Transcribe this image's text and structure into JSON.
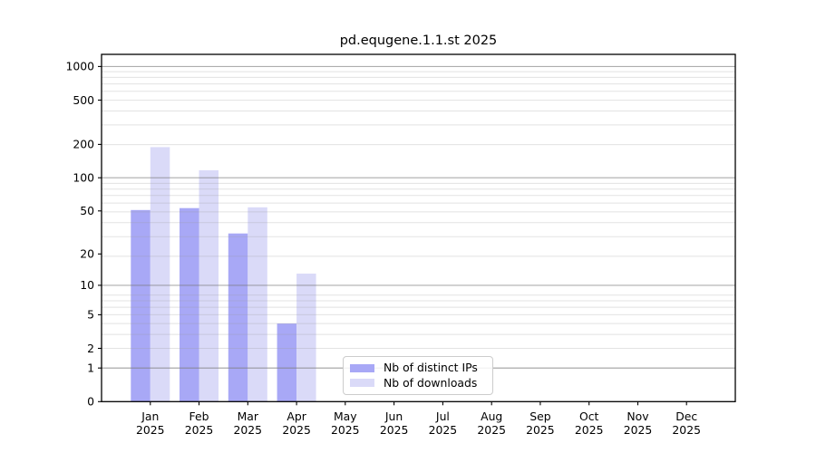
{
  "chart_data": {
    "type": "bar",
    "title": "pd.equgene.1.1.st 2025",
    "categories": [
      "Jan 2025",
      "Feb 2025",
      "Mar 2025",
      "Apr 2025",
      "May 2025",
      "Jun 2025",
      "Jul 2025",
      "Aug 2025",
      "Sep 2025",
      "Oct 2025",
      "Nov 2025",
      "Dec 2025"
    ],
    "series": [
      {
        "name": "Nb of distinct IPs",
        "color": "#a8a8f6",
        "values": [
          51,
          53,
          31,
          4,
          0,
          0,
          0,
          0,
          0,
          0,
          0,
          0
        ]
      },
      {
        "name": "Nb of downloads",
        "color": "#dadaf8",
        "values": [
          189,
          117,
          54,
          13,
          0,
          0,
          0,
          0,
          0,
          0,
          0,
          0
        ]
      }
    ],
    "xlabel": "",
    "ylabel": "",
    "y_scale": "log1p",
    "y_ticks": [
      0,
      1,
      2,
      5,
      10,
      20,
      50,
      100,
      200,
      500,
      1000
    ],
    "major_grid_values": [
      1,
      10,
      100,
      1000
    ],
    "ylim": [
      0,
      1285
    ],
    "xlim": [
      -1,
      12
    ],
    "grid": true,
    "grid_above_bars": true,
    "legend_position": "lower center",
    "colors": {
      "axis": "#000000",
      "major_grid": "#777777",
      "minor_grid": "#999999",
      "background": "#ffffff"
    }
  }
}
